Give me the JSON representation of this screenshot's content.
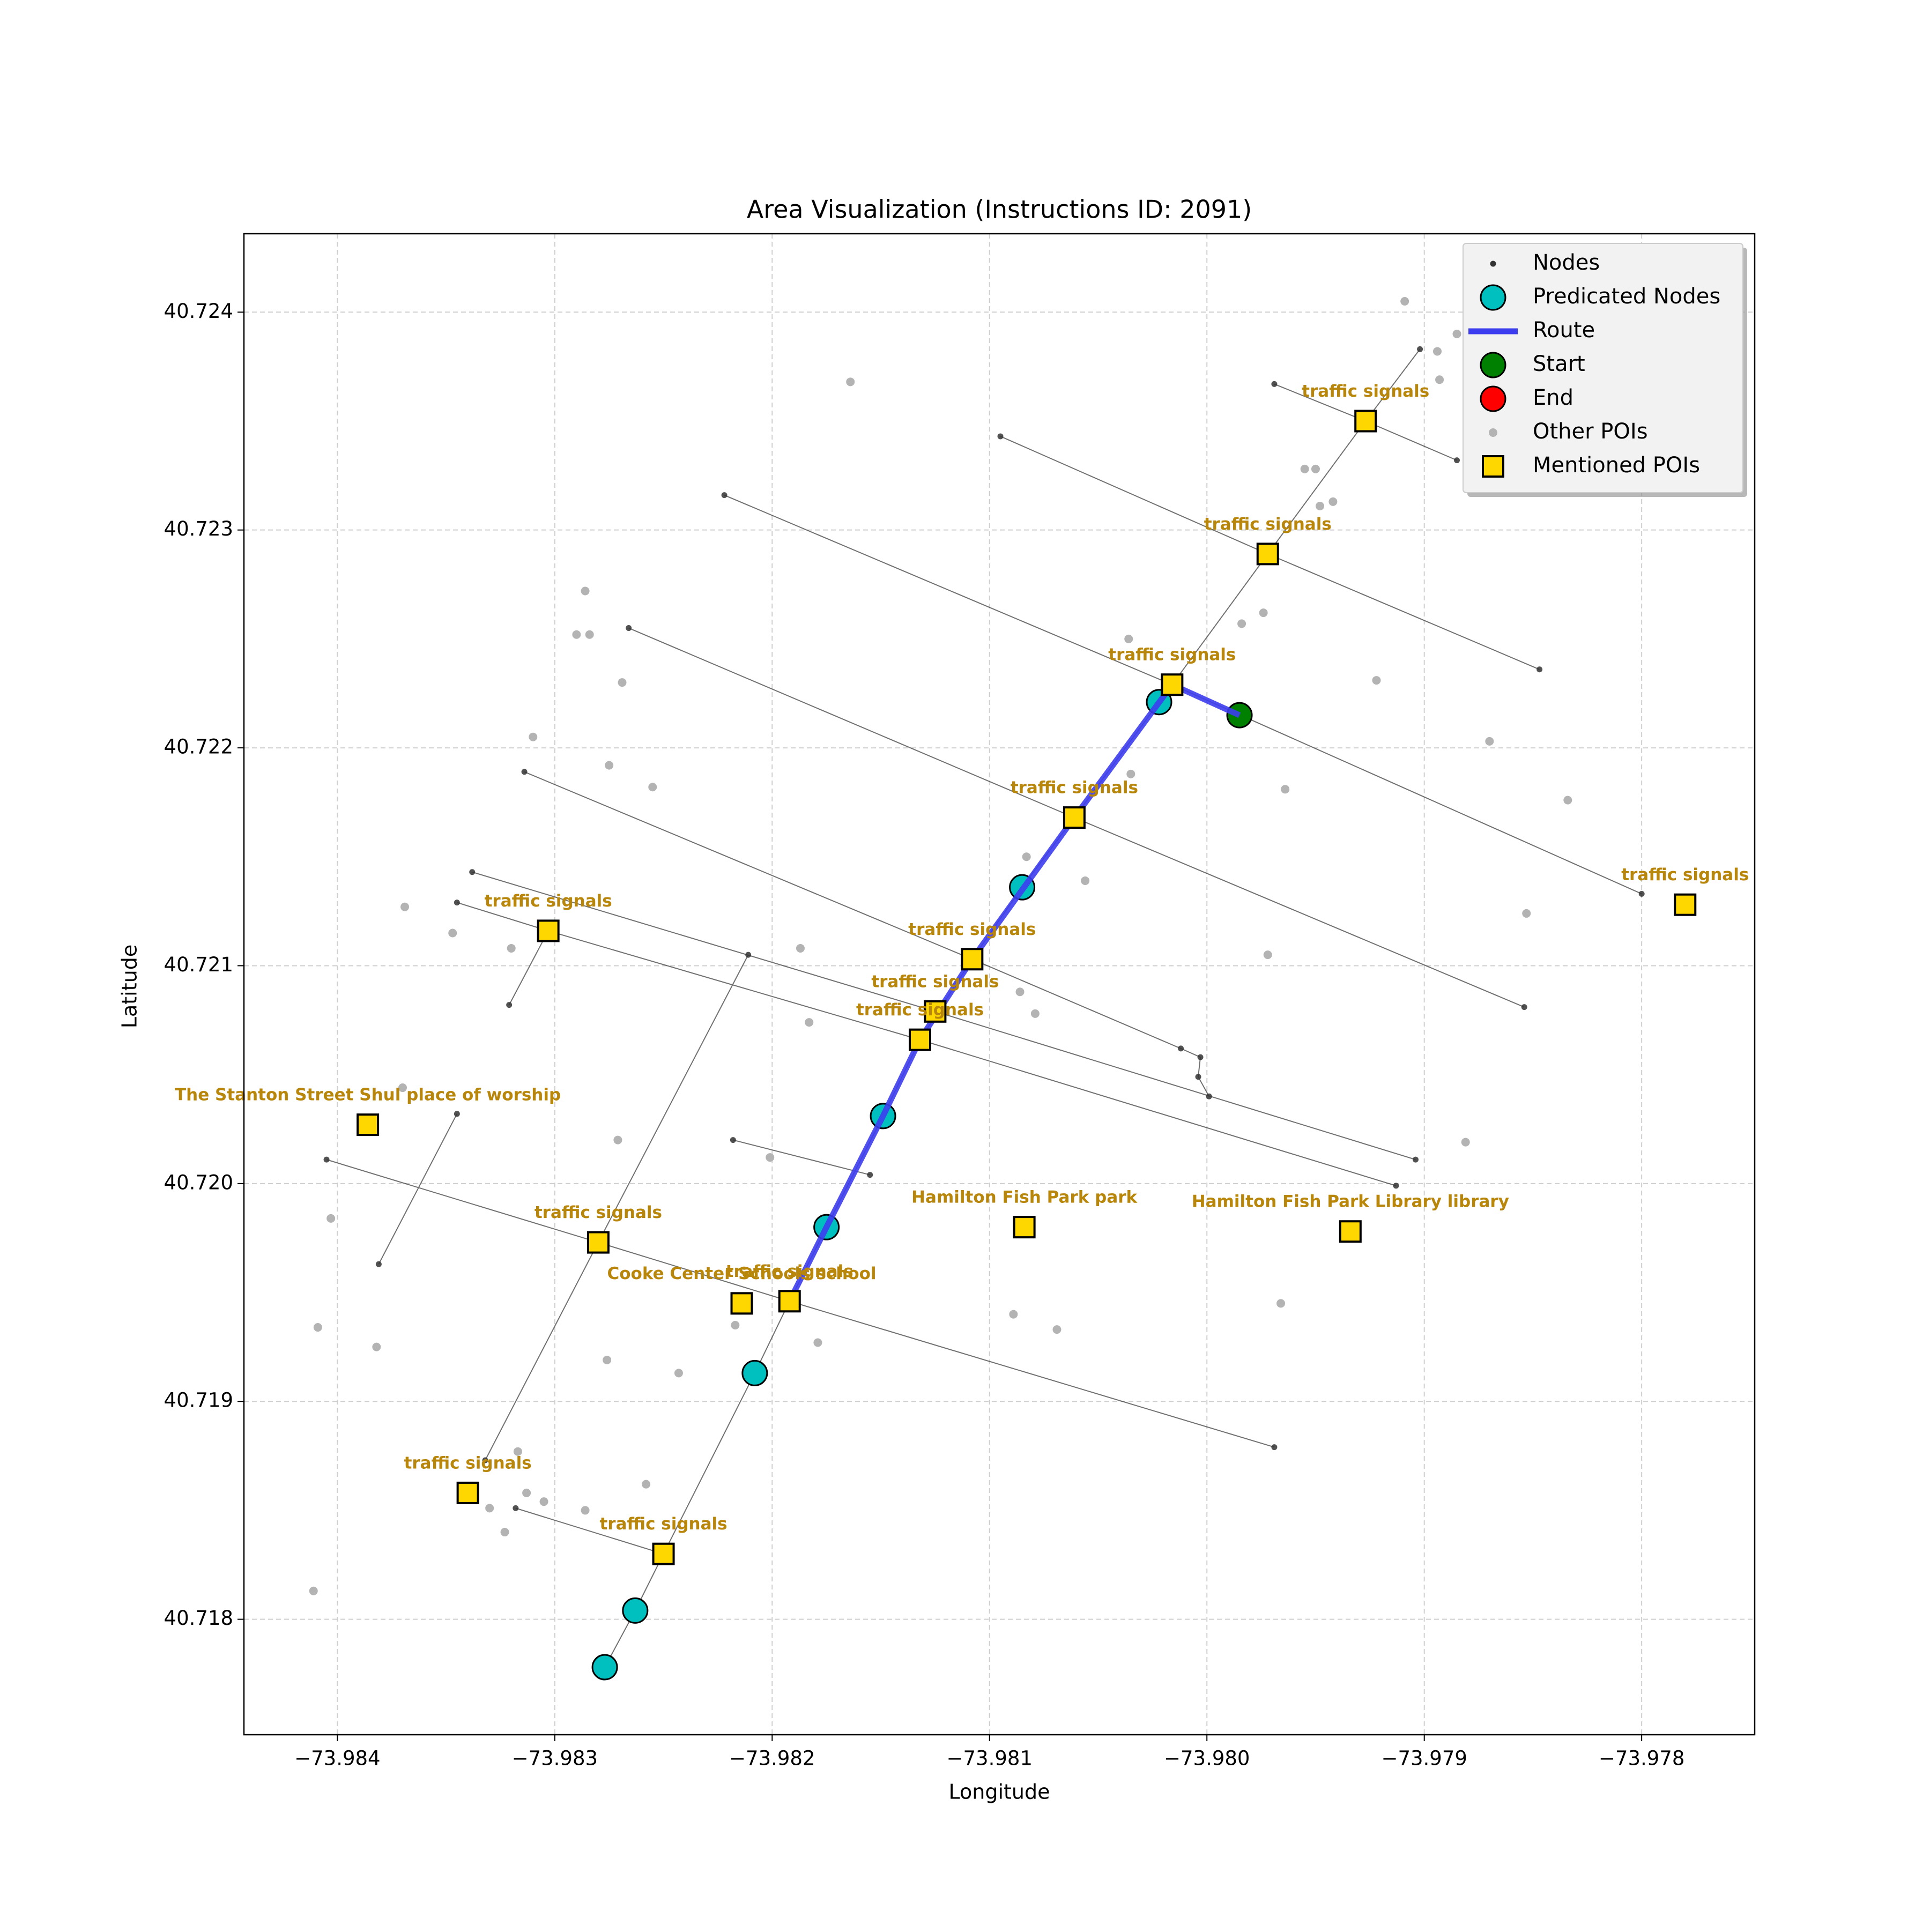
{
  "chart_data": {
    "type": "scatter",
    "title": "Area Visualization (Instructions ID: 2091)",
    "x_label": "Longitude",
    "y_label": "Latitude",
    "xlim": [
      -73.98443,
      -73.97748
    ],
    "ylim": [
      40.71747,
      40.72436
    ],
    "xticks": [
      {
        "value": -73.984,
        "label": "−73.984"
      },
      {
        "value": -73.983,
        "label": "−73.983"
      },
      {
        "value": -73.982,
        "label": "−73.982"
      },
      {
        "value": -73.981,
        "label": "−73.981"
      },
      {
        "value": -73.98,
        "label": "−73.980"
      },
      {
        "value": -73.979,
        "label": "−73.979"
      },
      {
        "value": -73.978,
        "label": "−73.978"
      }
    ],
    "yticks": [
      40.718,
      40.719,
      {
        "value": 40.72,
        "label": "40.720"
      },
      40.721,
      40.722,
      40.723,
      40.724
    ],
    "grid": true,
    "legend": "upper right",
    "series": [
      {
        "name": "Nodes",
        "marker": "node",
        "color": "#333333",
        "x": [
          -73.98222,
          -73.98016,
          -73.978,
          null,
          -73.98095,
          -73.97972,
          -73.97847,
          null,
          -73.97969,
          -73.97927,
          -73.97885,
          null,
          -73.98266,
          -73.98061,
          -73.97854,
          null,
          -73.98314,
          -73.98108,
          -73.98012,
          -73.98003,
          -73.98004,
          -73.97999,
          null,
          -73.98338,
          -73.98125,
          -73.97904,
          null,
          -73.98345,
          -73.98303,
          -73.98132,
          -73.97913,
          null,
          -73.98405,
          -73.9828,
          -73.98192,
          -73.97969,
          null,
          -73.98218,
          -73.98155,
          null,
          -73.98318,
          -73.9825,
          null,
          -73.98321,
          -73.98303,
          null,
          -73.98381,
          -73.98345,
          null,
          -73.98332,
          -73.9828,
          -73.98211,
          null,
          -73.98277,
          -73.98263,
          -73.9825,
          -73.98208,
          -73.98192,
          -73.98175,
          -73.98149,
          -73.98132,
          -73.98108,
          -73.98085,
          -73.98061,
          -73.98022,
          -73.98016,
          -73.97972,
          -73.97927,
          -73.97902
        ],
        "y": [
          40.72316,
          40.72229,
          40.72133,
          null,
          40.72343,
          40.72289,
          40.72236,
          null,
          40.72367,
          40.7235,
          40.72332,
          null,
          40.72255,
          40.72168,
          40.72081,
          null,
          40.72189,
          40.72103,
          40.72062,
          40.72058,
          40.72049,
          40.7204,
          null,
          40.72143,
          40.72079,
          40.72011,
          null,
          40.72129,
          40.72116,
          40.72066,
          40.71999,
          null,
          40.72011,
          40.71973,
          40.71946,
          40.71879,
          null,
          40.7202,
          40.72004,
          null,
          40.71851,
          40.7183,
          null,
          40.72082,
          40.72116,
          null,
          40.71963,
          40.72032,
          null,
          40.71873,
          40.71973,
          40.72105,
          null,
          40.71778,
          40.71804,
          40.7183,
          40.71913,
          40.71946,
          40.7198,
          40.72031,
          40.72066,
          40.72103,
          40.72136,
          40.72168,
          40.72221,
          40.72229,
          40.72289,
          40.7235,
          40.72383
        ]
      },
      {
        "name": "Predicated Nodes",
        "marker": "circle",
        "color": "#00bfbf",
        "x": [
          -73.98022,
          -73.98085,
          -73.98149,
          -73.98175,
          -73.98208,
          -73.98263,
          -73.98277
        ],
        "y": [
          40.72221,
          40.72136,
          40.72031,
          40.7198,
          40.71913,
          40.71804,
          40.71778
        ]
      },
      {
        "name": "Route",
        "marker": "line",
        "color": "#3d3df0",
        "x": [
          -73.97985,
          -73.98016,
          -73.98061,
          -73.98108,
          -73.98132,
          -73.98149,
          -73.98175,
          -73.98192
        ],
        "y": [
          40.72215,
          40.72229,
          40.72168,
          40.72103,
          40.72066,
          40.72031,
          40.7198,
          40.71946
        ]
      },
      {
        "name": "Start",
        "marker": "circle",
        "color": "#008000",
        "x": [
          -73.97985
        ],
        "y": [
          40.72215
        ]
      },
      {
        "name": "End",
        "marker": "circle",
        "color": "#ff0000",
        "x": [],
        "y": []
      },
      {
        "name": "Other POIs",
        "marker": "dot",
        "color": "#b3b3b3",
        "x": [
          -73.97909,
          -73.97885,
          -73.97894,
          -73.97893,
          -73.98164,
          -73.97955,
          -73.9795,
          -73.97942,
          -73.97948,
          -73.97974,
          -73.97984,
          -73.98286,
          -73.9829,
          -73.98284,
          -73.98036,
          -73.98269,
          -73.97922,
          -73.9831,
          -73.9787,
          -73.98275,
          -73.98035,
          -73.98255,
          -73.97964,
          -73.97834,
          -73.98083,
          -73.98056,
          -73.98369,
          -73.97853,
          -73.98347,
          -73.9832,
          -73.98187,
          -73.97972,
          -73.98086,
          -73.98079,
          -73.98183,
          -73.9837,
          -73.98271,
          -73.97881,
          -73.98201,
          -73.98403,
          -73.97966,
          -73.98089,
          -73.98409,
          -73.98069,
          -73.98217,
          -73.98179,
          -73.98382,
          -73.98276,
          -73.98243,
          -73.98317,
          -73.98258,
          -73.98313,
          -73.98305,
          -73.9833,
          -73.98286,
          -73.98323,
          -73.98411
        ],
        "y": [
          40.72405,
          40.7239,
          40.72382,
          40.72369,
          40.72368,
          40.72328,
          40.72328,
          40.72313,
          40.72311,
          40.72262,
          40.72257,
          40.72272,
          40.72252,
          40.72252,
          40.7225,
          40.7223,
          40.72231,
          40.72205,
          40.72203,
          40.72192,
          40.72188,
          40.72182,
          40.72181,
          40.72176,
          40.7215,
          40.72139,
          40.72127,
          40.72124,
          40.72115,
          40.72108,
          40.72108,
          40.72105,
          40.72088,
          40.72078,
          40.72074,
          40.72044,
          40.7202,
          40.72019,
          40.72012,
          40.71984,
          40.71945,
          40.7194,
          40.71934,
          40.71933,
          40.71935,
          40.71927,
          40.71925,
          40.71919,
          40.71913,
          40.71877,
          40.71862,
          40.71858,
          40.71854,
          40.71851,
          40.7185,
          40.7184,
          40.71813
        ]
      },
      {
        "name": "Mentioned POIs",
        "marker": "square",
        "color": "#ffd700",
        "label_color": "#b8860b",
        "x": [
          -73.97927,
          -73.97972,
          -73.98016,
          -73.98061,
          -73.9778,
          -73.98303,
          -73.98108,
          -73.98125,
          -73.98132,
          -73.98386,
          -73.98084,
          -73.97934,
          -73.9828,
          -73.98214,
          -73.98192,
          -73.9834,
          -73.9825
        ],
        "y": [
          40.7235,
          40.72289,
          40.72229,
          40.72168,
          40.72128,
          40.72116,
          40.72103,
          40.72079,
          40.72066,
          40.72027,
          40.7198,
          40.71978,
          40.71973,
          40.71945,
          40.71946,
          40.71858,
          40.7183
        ],
        "labels": [
          "traffic signals",
          "traffic signals",
          "traffic signals",
          "traffic signals",
          "traffic signals",
          "traffic signals",
          "traffic signals",
          "traffic signals",
          "traffic signals",
          "The Stanton Street Shul place of worship",
          "Hamilton Fish Park   park",
          "Hamilton Fish Park Library library",
          "traffic signals",
          "Cooke Center Schools school",
          "traffic signals",
          "traffic signals",
          "traffic signals"
        ]
      }
    ]
  }
}
